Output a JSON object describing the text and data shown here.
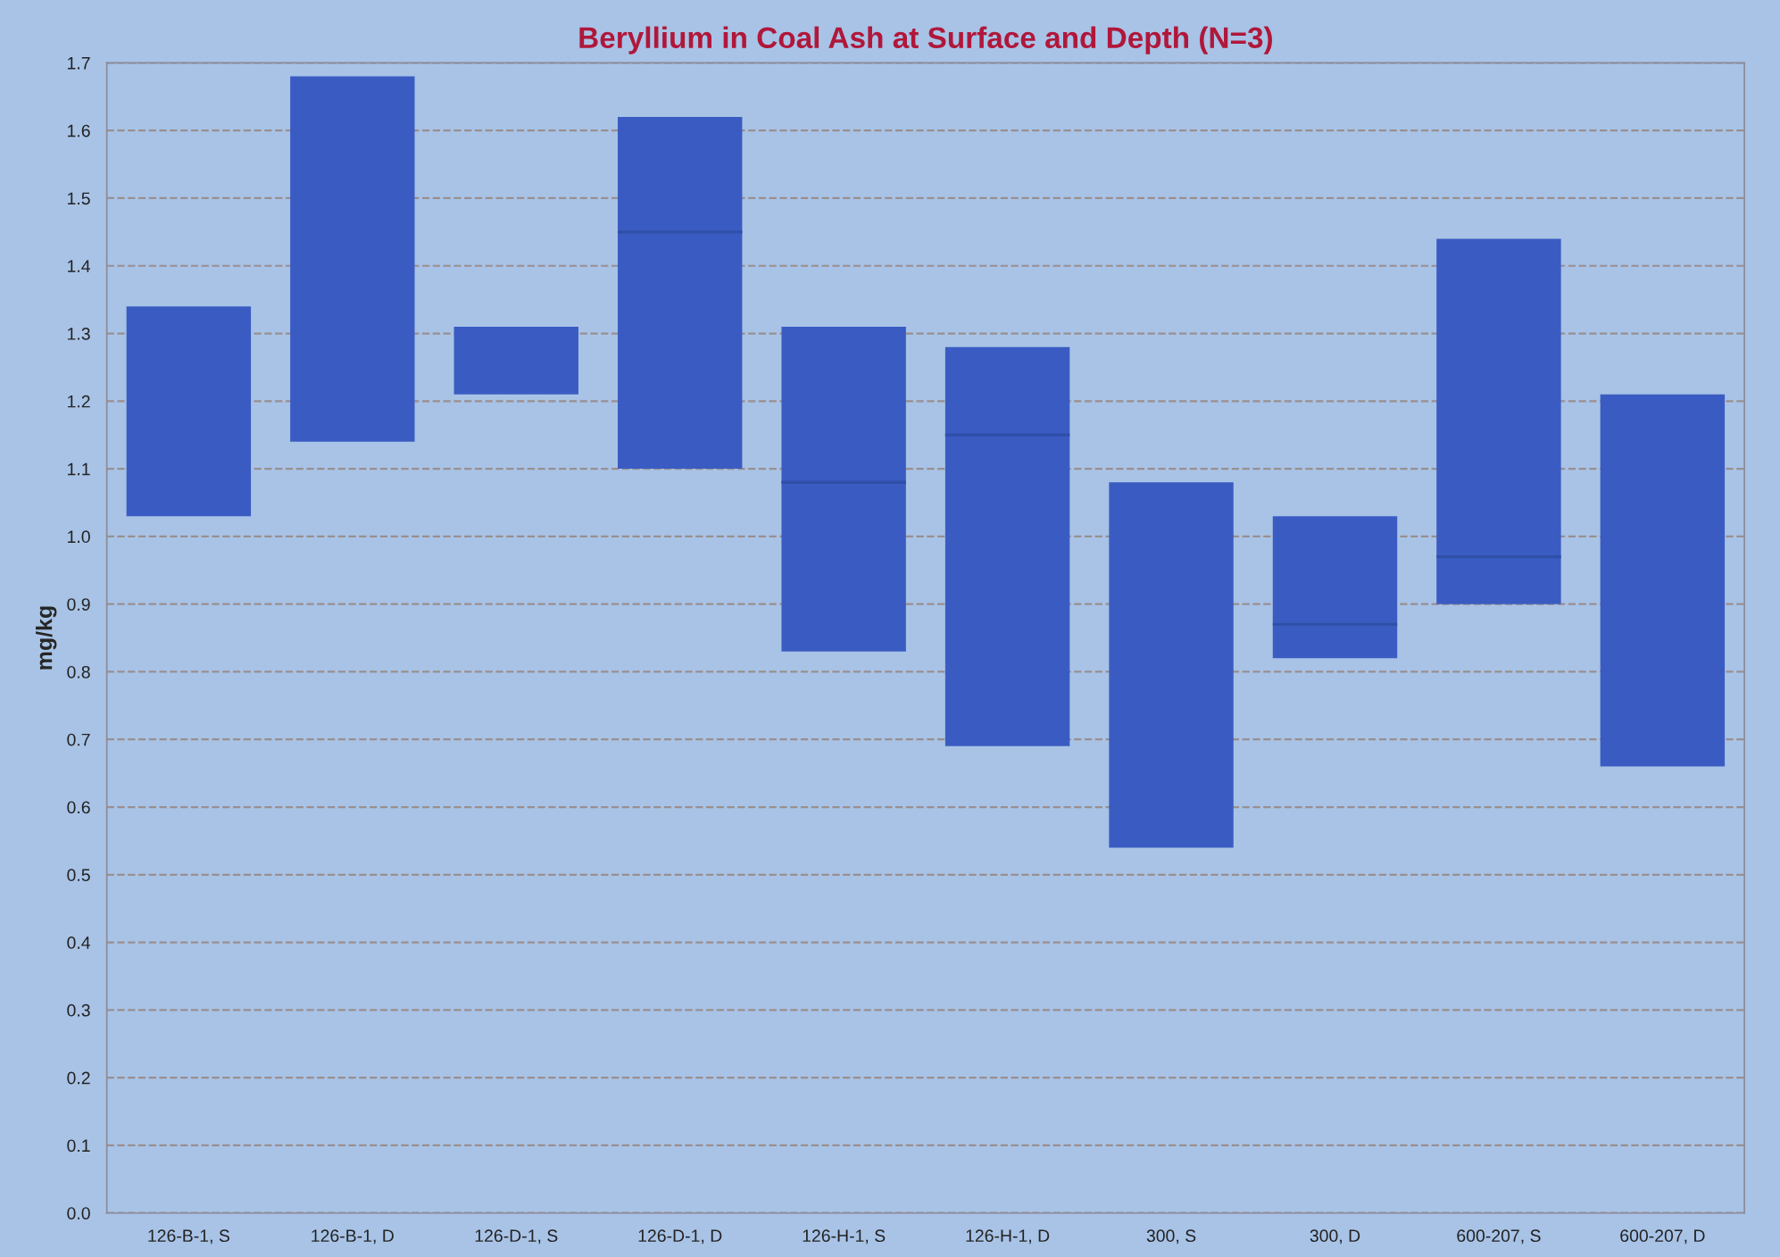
{
  "chart_data": {
    "type": "box",
    "title": "Beryllium in Coal Ash at Surface and Depth (N=3)",
    "ylabel": "mg/kg",
    "categories": [
      "126-B-1, S",
      "126-B-1, D",
      "126-D-1, S",
      "126-D-1, D",
      "126-H-1, S",
      "126-H-1, D",
      "300, S",
      "300, D",
      "600-207, S",
      "600-207, D"
    ],
    "color": "#3a5cc2",
    "boxes": [
      {
        "low": 1.03,
        "q1": 1.03,
        "median": null,
        "q3": 1.34,
        "high": 1.34
      },
      {
        "low": 1.14,
        "q1": 1.14,
        "median": null,
        "q3": 1.68,
        "high": 1.68
      },
      {
        "low": 1.21,
        "q1": 1.21,
        "median": null,
        "q3": 1.31,
        "high": 1.31
      },
      {
        "low": 1.1,
        "q1": 1.1,
        "median": 1.45,
        "q3": 1.62,
        "high": 1.62
      },
      {
        "low": 0.83,
        "q1": 0.83,
        "median": 1.08,
        "q3": 1.31,
        "high": 1.31
      },
      {
        "low": 0.69,
        "q1": 0.69,
        "median": 1.15,
        "q3": 1.28,
        "high": 1.28
      },
      {
        "low": 0.54,
        "q1": 0.54,
        "median": null,
        "q3": 1.08,
        "high": 1.08
      },
      {
        "low": 0.82,
        "q1": 0.82,
        "median": 0.87,
        "q3": 1.03,
        "high": 1.03
      },
      {
        "low": 0.9,
        "q1": 0.9,
        "median": 0.97,
        "q3": 1.44,
        "high": 1.44
      },
      {
        "low": 0.66,
        "q1": 0.66,
        "median": null,
        "q3": 1.21,
        "high": 1.21
      }
    ],
    "ylim": [
      0.0,
      1.7
    ],
    "yticks": [
      {
        "value": 0,
        "label": "0.0"
      },
      0.1,
      0.2,
      0.3,
      0.4,
      0.5,
      0.6,
      0.7,
      0.8,
      0.9,
      {
        "value": 1,
        "label": "1.0"
      },
      1.1,
      1.2,
      1.3,
      1.4,
      1.5,
      1.6,
      1.7
    ],
    "grid": "y"
  }
}
